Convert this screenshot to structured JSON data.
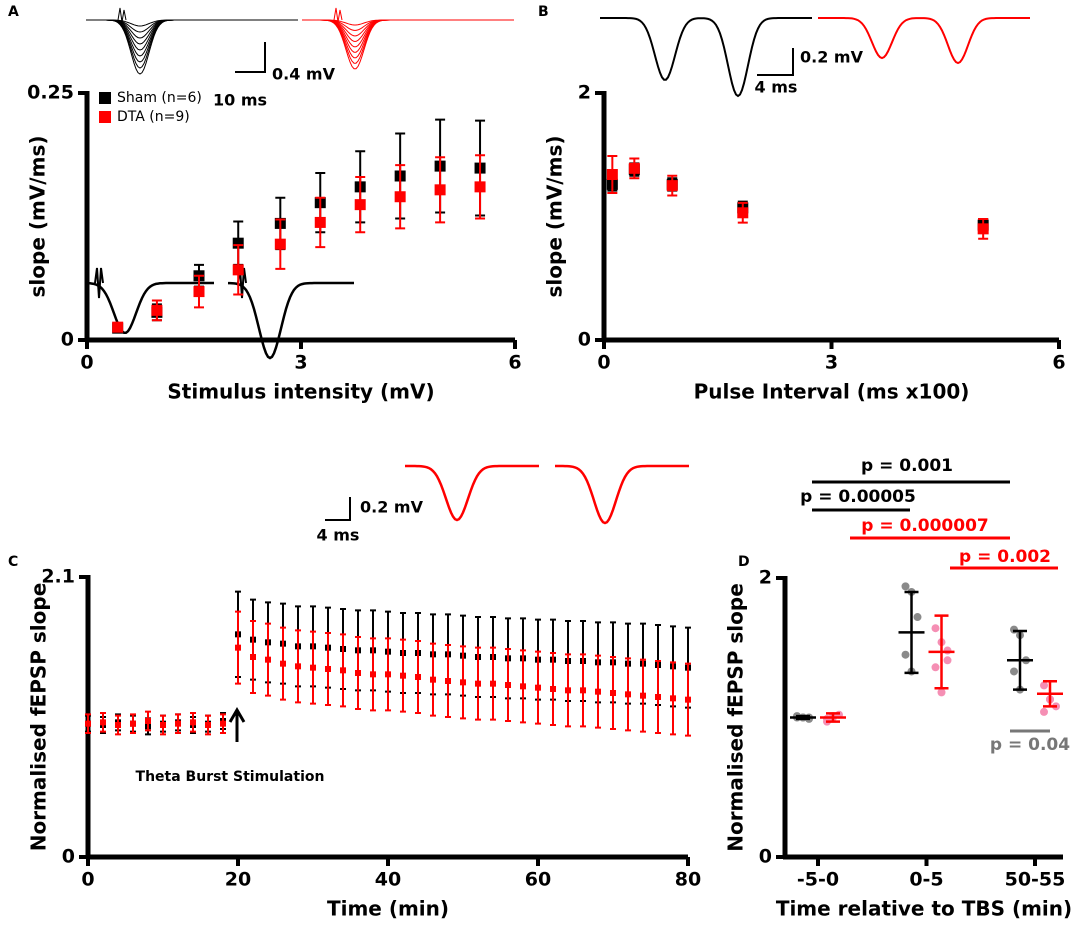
{
  "chart_data": [
    {
      "label": "A",
      "type": "scatter",
      "x_label": "Stimulus intensity (mV)",
      "y_label": "slope (mV/ms)",
      "xlim": [
        0,
        6
      ],
      "xticks": [
        0,
        3,
        6
      ],
      "ylim": [
        0,
        0.25
      ],
      "yticks": [
        0,
        0.25
      ],
      "legend": "upper left",
      "annotations": [
        "0.4 mV",
        "10 ms"
      ],
      "x": [
        0.43,
        0.98,
        1.57,
        2.12,
        2.71,
        3.27,
        3.83,
        4.39,
        4.95,
        5.51
      ],
      "series": [
        {
          "name": "Sham (n=6)",
          "color": "#000000",
          "values": [
            0.012,
            0.028,
            0.065,
            0.098,
            0.118,
            0.139,
            0.155,
            0.166,
            0.176,
            0.174
          ],
          "errors": [
            0.003,
            0.008,
            0.011,
            0.022,
            0.026,
            0.03,
            0.036,
            0.043,
            0.047,
            0.048
          ]
        },
        {
          "name": "DTA (n=9)",
          "color": "#ff0000",
          "values": [
            0.013,
            0.03,
            0.049,
            0.071,
            0.097,
            0.119,
            0.137,
            0.145,
            0.152,
            0.155
          ],
          "errors": [
            0.004,
            0.01,
            0.016,
            0.025,
            0.025,
            0.025,
            0.028,
            0.032,
            0.033,
            0.032
          ]
        }
      ]
    },
    {
      "label": "B",
      "type": "scatter",
      "x_label": "Pulse Interval (ms x100)",
      "y_label": "slope (mV/ms)",
      "xlim": [
        0,
        6
      ],
      "xticks": [
        0,
        3,
        6
      ],
      "ylim": [
        0,
        2
      ],
      "yticks": [
        0,
        2
      ],
      "annotations": [
        "0.2 mV",
        "4 ms"
      ],
      "x": [
        0.11,
        0.4,
        0.9,
        1.83,
        5.0
      ],
      "series": [
        {
          "color": "#000000",
          "values": [
            1.26,
            1.38,
            1.26,
            1.07,
            0.93
          ],
          "errors": [
            0.05,
            0.05,
            0.05,
            0.05,
            0.05
          ]
        },
        {
          "color": "#ff0000",
          "values": [
            1.34,
            1.39,
            1.25,
            1.03,
            0.9
          ],
          "errors": [
            0.15,
            0.08,
            0.08,
            0.08,
            0.08
          ]
        }
      ]
    },
    {
      "label": "C",
      "type": "scatter",
      "x_label": "Time (min)",
      "y_label": "Normalised fEPSP slope",
      "xlim": [
        0,
        80
      ],
      "xticks": [
        0,
        20,
        40,
        60,
        80
      ],
      "ylim": [
        0,
        2.1
      ],
      "yticks": [
        0,
        2.1
      ],
      "annotations": [
        "0.2 mV",
        "4 ms",
        "Theta Burst Stimulation"
      ],
      "x": [
        0,
        2,
        4,
        6,
        8,
        10,
        12,
        14,
        16,
        18,
        20,
        22,
        24,
        26,
        28,
        30,
        32,
        34,
        36,
        38,
        40,
        42,
        44,
        46,
        48,
        50,
        52,
        54,
        56,
        58,
        60,
        62,
        64,
        66,
        68,
        70,
        72,
        74,
        76,
        78,
        80
      ],
      "series": [
        {
          "color": "#000000",
          "values": [
            1.0,
            0.99,
            1.01,
            1.0,
            0.98,
            1.0,
            1.01,
            0.99,
            1.0,
            1.02,
            1.67,
            1.63,
            1.61,
            1.6,
            1.58,
            1.58,
            1.57,
            1.56,
            1.55,
            1.55,
            1.54,
            1.53,
            1.53,
            1.52,
            1.52,
            1.51,
            1.5,
            1.5,
            1.49,
            1.49,
            1.48,
            1.48,
            1.47,
            1.47,
            1.46,
            1.46,
            1.45,
            1.45,
            1.44,
            1.43,
            1.42
          ],
          "errors": [
            0.06,
            0.06,
            0.06,
            0.06,
            0.06,
            0.06,
            0.06,
            0.06,
            0.06,
            0.06,
            0.32,
            0.3,
            0.3,
            0.3,
            0.3,
            0.3,
            0.3,
            0.3,
            0.3,
            0.3,
            0.3,
            0.3,
            0.3,
            0.3,
            0.3,
            0.3,
            0.3,
            0.3,
            0.3,
            0.3,
            0.3,
            0.3,
            0.3,
            0.3,
            0.3,
            0.3,
            0.3,
            0.3,
            0.3,
            0.3,
            0.3
          ]
        },
        {
          "color": "#ff0000",
          "values": [
            1.0,
            1.01,
            0.99,
            1.0,
            1.02,
            0.99,
            1.0,
            1.01,
            0.99,
            1.0,
            1.57,
            1.5,
            1.48,
            1.45,
            1.43,
            1.42,
            1.41,
            1.4,
            1.38,
            1.37,
            1.37,
            1.36,
            1.35,
            1.33,
            1.32,
            1.31,
            1.3,
            1.3,
            1.29,
            1.28,
            1.27,
            1.26,
            1.25,
            1.25,
            1.24,
            1.23,
            1.22,
            1.21,
            1.2,
            1.19,
            1.18
          ],
          "errors": [
            0.07,
            0.07,
            0.07,
            0.07,
            0.07,
            0.07,
            0.07,
            0.07,
            0.07,
            0.07,
            0.27,
            0.27,
            0.27,
            0.27,
            0.27,
            0.27,
            0.27,
            0.27,
            0.27,
            0.27,
            0.27,
            0.27,
            0.27,
            0.27,
            0.27,
            0.27,
            0.27,
            0.27,
            0.27,
            0.27,
            0.27,
            0.27,
            0.27,
            0.27,
            0.27,
            0.27,
            0.27,
            0.27,
            0.27,
            0.27,
            0.27
          ]
        }
      ]
    },
    {
      "label": "D",
      "type": "dot",
      "x_label": "Time relative to TBS (min)",
      "y_label": "Normalised fEPSP slope",
      "categories": [
        "-5-0",
        "0-5",
        "50-55"
      ],
      "ylim": [
        0,
        2
      ],
      "yticks": [
        0,
        2
      ],
      "annotations": [
        {
          "text": "p = 0.001",
          "color": "#000000"
        },
        {
          "text": "p = 0.00005",
          "color": "#000000"
        },
        {
          "text": "p = 0.000007",
          "color": "#ff0000"
        },
        {
          "text": "p = 0.002",
          "color": "#ff0000"
        },
        {
          "text": "p = 0.04",
          "color": "#777777"
        }
      ],
      "series": [
        {
          "color": "#000000",
          "point_color": "#8a8a8a",
          "values": [
            1.0,
            1.61,
            1.41
          ],
          "errors": [
            0.01,
            0.29,
            0.21
          ],
          "points": [
            [
              1.0,
              1.0,
              0.99,
              1.01,
              1.0,
              1.0
            ],
            [
              1.94,
              1.9,
              1.72,
              1.45,
              1.33
            ],
            [
              1.63,
              1.59,
              1.41,
              1.33,
              1.2
            ]
          ]
        },
        {
          "color": "#ff0000",
          "point_color": "#f58fb4",
          "values": [
            1.0,
            1.47,
            1.17
          ],
          "errors": [
            0.03,
            0.26,
            0.09
          ],
          "points": [
            [
              0.97,
              1.0,
              1.02,
              0.99,
              1.01
            ],
            [
              1.64,
              1.54,
              1.41,
              1.36,
              1.18,
              1.48
            ],
            [
              1.23,
              1.13,
              1.08,
              1.04,
              1.13
            ]
          ]
        }
      ]
    }
  ]
}
